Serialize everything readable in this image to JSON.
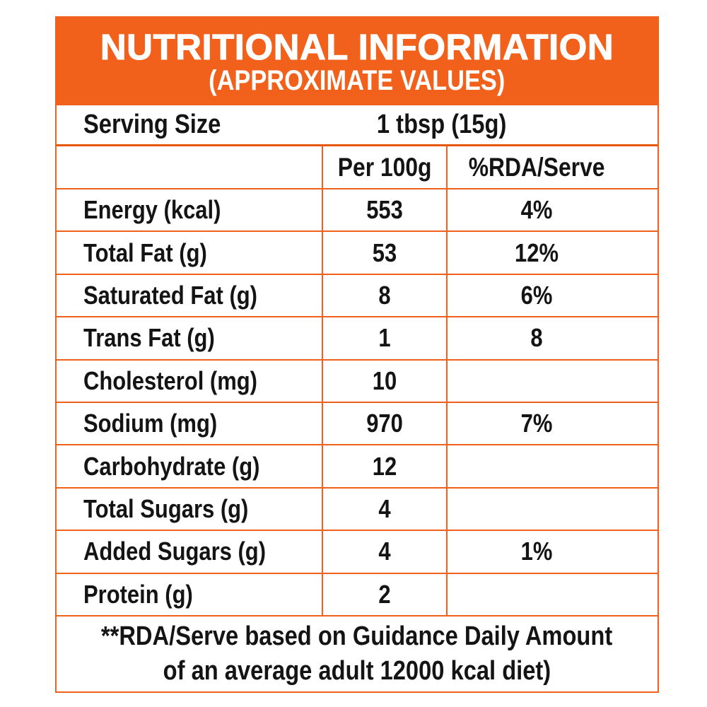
{
  "header": {
    "title": "NUTRITIONAL INFORMATION",
    "subtitle": "(APPROXIMATE VALUES)"
  },
  "serving": {
    "label": "Serving Size",
    "value": "1 tbsp (15g)"
  },
  "columns": {
    "nutrient": "",
    "per100g": "Per 100g",
    "rda": "%RDA/Serve"
  },
  "rows": [
    {
      "label": "Energy (kcal)",
      "per100g": "553",
      "rda": "4%"
    },
    {
      "label": "Total Fat (g)",
      "per100g": "53",
      "rda": "12%"
    },
    {
      "label": "Saturated Fat (g)",
      "per100g": "8",
      "rda": "6%"
    },
    {
      "label": "Trans Fat (g)",
      "per100g": "1",
      "rda": "8"
    },
    {
      "label": "Cholesterol (mg)",
      "per100g": "10",
      "rda": ""
    },
    {
      "label": "Sodium (mg)",
      "per100g": "970",
      "rda": "7%"
    },
    {
      "label": "Carbohydrate (g)",
      "per100g": "12",
      "rda": ""
    },
    {
      "label": "Total Sugars (g)",
      "per100g": "4",
      "rda": ""
    },
    {
      "label": "Added Sugars (g)",
      "per100g": "4",
      "rda": "1%"
    },
    {
      "label": "Protein (g)",
      "per100g": "2",
      "rda": ""
    }
  ],
  "footnote": {
    "line1": "**RDA/Serve based on Guidance Daily Amount",
    "line2": "of an average adult 12000 kcal diet)"
  },
  "colors": {
    "accent": "#F2611C",
    "accent_strong": "#E8570F",
    "text": "#141414",
    "background": "#FFFFFF"
  }
}
